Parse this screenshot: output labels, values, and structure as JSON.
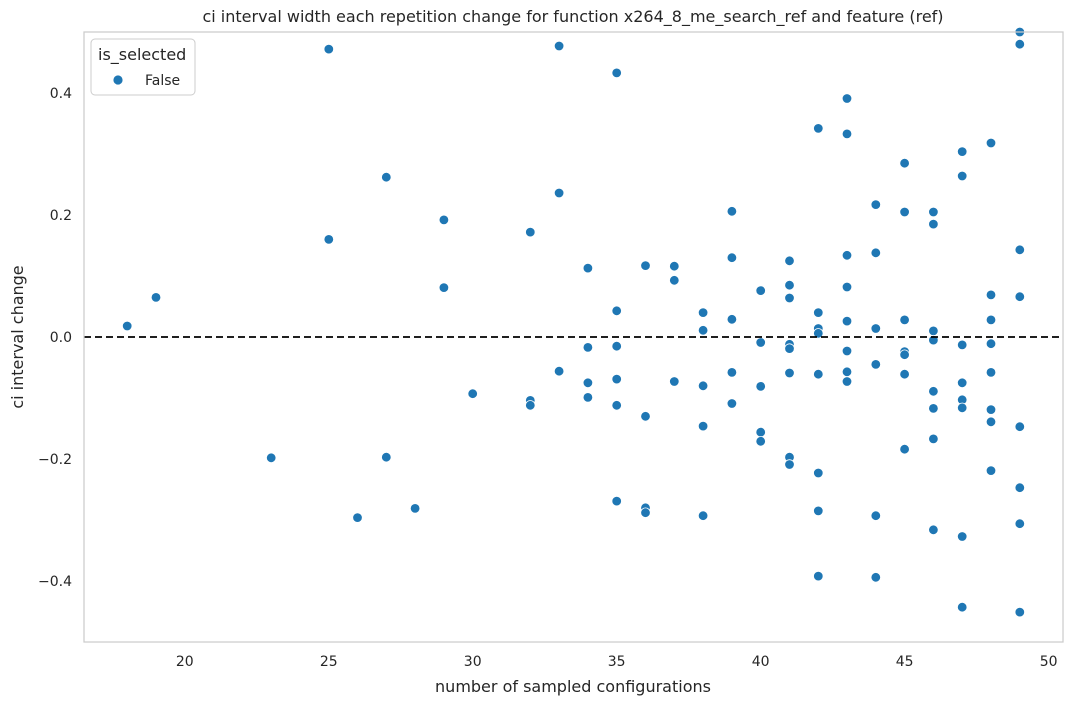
{
  "chart_data": {
    "type": "scatter",
    "title": "ci interval width each repetition change for function x264_8_me_search_ref and feature (ref)",
    "xlabel": "number of sampled configurations",
    "ylabel": "ci interval change",
    "xlim": [
      16.5,
      50.5
    ],
    "ylim": [
      -0.5,
      0.5
    ],
    "xticks": [
      20,
      25,
      30,
      35,
      40,
      45,
      50
    ],
    "yticks": [
      -0.4,
      -0.2,
      0.0,
      0.2,
      0.4
    ],
    "xtick_labels": [
      "20",
      "25",
      "30",
      "35",
      "40",
      "45",
      "50"
    ],
    "ytick_labels": [
      "−0.4",
      "−0.2",
      "0.0",
      "0.2",
      "0.4"
    ],
    "grid": false,
    "reference_line": {
      "y": 0.0,
      "style": "dashed",
      "color": "#000000"
    },
    "legend": {
      "title": "is_selected",
      "position": "top-left",
      "entries": [
        {
          "label": "False",
          "color": "#1f77b4"
        }
      ]
    },
    "series": [
      {
        "name": "False",
        "color": "#1f77b4",
        "points": [
          [
            18,
            0.018
          ],
          [
            19,
            0.065
          ],
          [
            23,
            -0.198
          ],
          [
            25,
            0.472
          ],
          [
            25,
            0.16
          ],
          [
            26,
            -0.296
          ],
          [
            27,
            0.262
          ],
          [
            27,
            -0.197
          ],
          [
            28,
            -0.281
          ],
          [
            29,
            0.192
          ],
          [
            29,
            0.081
          ],
          [
            30,
            -0.093
          ],
          [
            32,
            0.172
          ],
          [
            32,
            -0.104
          ],
          [
            32,
            -0.112
          ],
          [
            33,
            0.477
          ],
          [
            33,
            0.236
          ],
          [
            33,
            -0.056
          ],
          [
            34,
            0.113
          ],
          [
            34,
            -0.017
          ],
          [
            34,
            -0.075
          ],
          [
            34,
            -0.099
          ],
          [
            35,
            0.433
          ],
          [
            35,
            0.043
          ],
          [
            35,
            -0.015
          ],
          [
            35,
            -0.069
          ],
          [
            35,
            -0.112
          ],
          [
            35,
            -0.269
          ],
          [
            36,
            0.117
          ],
          [
            36,
            -0.13
          ],
          [
            36,
            -0.28
          ],
          [
            36,
            -0.288
          ],
          [
            37,
            0.116
          ],
          [
            37,
            0.093
          ],
          [
            37,
            -0.073
          ],
          [
            38,
            0.04
          ],
          [
            38,
            0.011
          ],
          [
            38,
            -0.08
          ],
          [
            38,
            -0.146
          ],
          [
            38,
            -0.293
          ],
          [
            39,
            0.206
          ],
          [
            39,
            0.13
          ],
          [
            39,
            0.029
          ],
          [
            39,
            -0.058
          ],
          [
            39,
            -0.109
          ],
          [
            40,
            0.076
          ],
          [
            40,
            -0.009
          ],
          [
            40,
            -0.081
          ],
          [
            40,
            -0.156
          ],
          [
            40,
            -0.171
          ],
          [
            41,
            0.125
          ],
          [
            41,
            0.085
          ],
          [
            41,
            0.064
          ],
          [
            41,
            -0.012
          ],
          [
            41,
            -0.019
          ],
          [
            41,
            -0.059
          ],
          [
            41,
            -0.197
          ],
          [
            41,
            -0.209
          ],
          [
            42,
            0.342
          ],
          [
            42,
            0.04
          ],
          [
            42,
            0.014
          ],
          [
            42,
            0.006
          ],
          [
            42,
            -0.061
          ],
          [
            42,
            -0.223
          ],
          [
            42,
            -0.285
          ],
          [
            42,
            -0.392
          ],
          [
            43,
            0.391
          ],
          [
            43,
            0.333
          ],
          [
            43,
            0.134
          ],
          [
            43,
            0.082
          ],
          [
            43,
            0.026
          ],
          [
            43,
            -0.023
          ],
          [
            43,
            -0.057
          ],
          [
            43,
            -0.073
          ],
          [
            44,
            0.217
          ],
          [
            44,
            0.138
          ],
          [
            44,
            0.014
          ],
          [
            44,
            -0.045
          ],
          [
            44,
            -0.293
          ],
          [
            44,
            -0.394
          ],
          [
            45,
            0.285
          ],
          [
            45,
            0.205
          ],
          [
            45,
            0.028
          ],
          [
            45,
            -0.024
          ],
          [
            45,
            -0.029
          ],
          [
            45,
            -0.061
          ],
          [
            45,
            -0.184
          ],
          [
            46,
            0.205
          ],
          [
            46,
            0.185
          ],
          [
            46,
            0.01
          ],
          [
            46,
            -0.005
          ],
          [
            46,
            -0.089
          ],
          [
            46,
            -0.117
          ],
          [
            46,
            -0.167
          ],
          [
            46,
            -0.316
          ],
          [
            47,
            0.304
          ],
          [
            47,
            0.264
          ],
          [
            47,
            -0.013
          ],
          [
            47,
            -0.075
          ],
          [
            47,
            -0.103
          ],
          [
            47,
            -0.116
          ],
          [
            47,
            -0.327
          ],
          [
            47,
            -0.443
          ],
          [
            48,
            0.318
          ],
          [
            48,
            0.069
          ],
          [
            48,
            0.028
          ],
          [
            48,
            -0.011
          ],
          [
            48,
            -0.058
          ],
          [
            48,
            -0.119
          ],
          [
            48,
            -0.139
          ],
          [
            48,
            -0.219
          ],
          [
            49,
            0.505
          ],
          [
            49,
            0.48
          ],
          [
            49,
            0.143
          ],
          [
            49,
            0.066
          ],
          [
            49,
            -0.147
          ],
          [
            49,
            -0.247
          ],
          [
            49,
            -0.306
          ],
          [
            49,
            -0.451
          ]
        ]
      }
    ]
  }
}
